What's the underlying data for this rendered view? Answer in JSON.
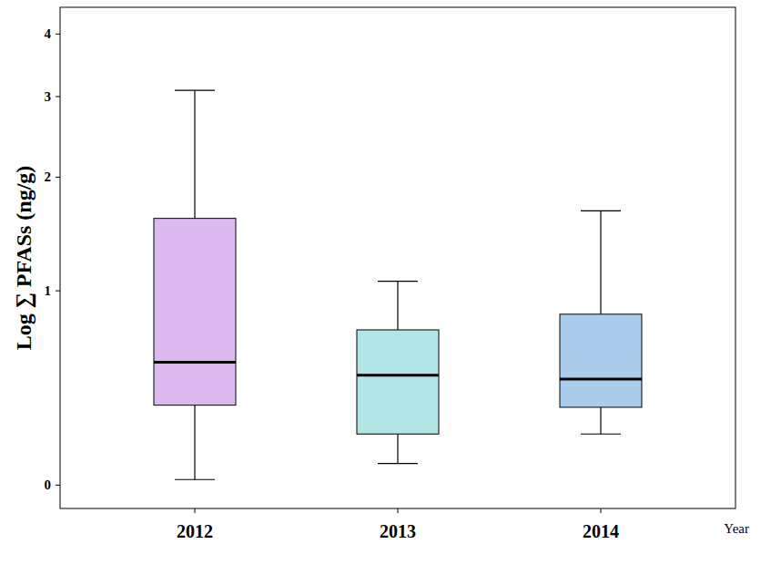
{
  "chart_data": {
    "type": "box",
    "x_label": "Year",
    "y_label": "Log ∑ PFASs (ng/g)",
    "categories": [
      "2012",
      "2013",
      "2014"
    ],
    "min": [
      0.02,
      0.08,
      0.2
    ],
    "q1": [
      0.33,
      0.2,
      0.32
    ],
    "median": [
      0.55,
      0.48,
      0.46
    ],
    "q3": [
      1.59,
      0.74,
      0.84
    ],
    "max": [
      3.09,
      1.07,
      1.66
    ],
    "colors": [
      "#ddb9f2",
      "#b3e6e6",
      "#aacdec"
    ],
    "log": "y",
    "ylim": [
      -0.08,
      4.5
    ],
    "yticks": [
      0,
      1,
      2,
      3,
      4
    ],
    "grid": false
  }
}
